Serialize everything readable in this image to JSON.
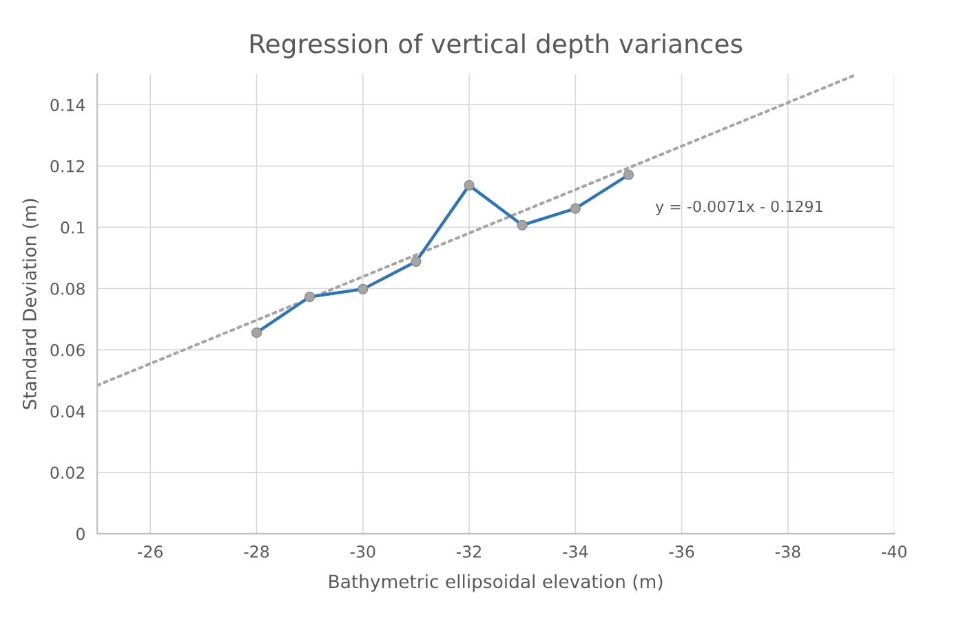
{
  "chart_data": {
    "type": "line",
    "title": "Regression of vertical depth variances",
    "xlabel": "Bathymetric ellipsoidal elevation (m)",
    "ylabel": "Standard Deviation (m)",
    "x": [
      -28,
      -29,
      -30,
      -31,
      -32,
      -33,
      -34,
      -35
    ],
    "series": [
      {
        "color": "#2e75b6",
        "marker": "circle",
        "line_style": "solid",
        "values": [
          0.0656,
          0.0773,
          0.0798,
          0.0888,
          0.1137,
          0.1007,
          0.1061,
          0.1171
        ]
      },
      {
        "color": "#a5a5a5",
        "marker": "none",
        "line_style": "dotted",
        "x": [
          -25,
          -39.3
        ],
        "values": [
          0.0484,
          0.1499
        ]
      }
    ],
    "annotations": [
      "y = -0.0071x - 0.1291"
    ],
    "xlim": [
      -25,
      -40
    ],
    "xticks": [
      -26,
      -28,
      -30,
      -32,
      -34,
      -36,
      -38,
      -40
    ],
    "ylim": [
      0,
      0.15
    ],
    "yticks": [
      0,
      {
        "value": 0.02,
        "label": "0.02"
      },
      {
        "value": 0.04,
        "label": "0.04"
      },
      {
        "value": 0.06,
        "label": "0.06"
      },
      {
        "value": 0.08,
        "label": "0.08"
      },
      {
        "value": 0.1,
        "label": "0.1"
      },
      {
        "value": 0.12,
        "label": "0.12"
      },
      {
        "value": 0.14,
        "label": "0.14"
      }
    ],
    "grid": true,
    "legend": false
  }
}
